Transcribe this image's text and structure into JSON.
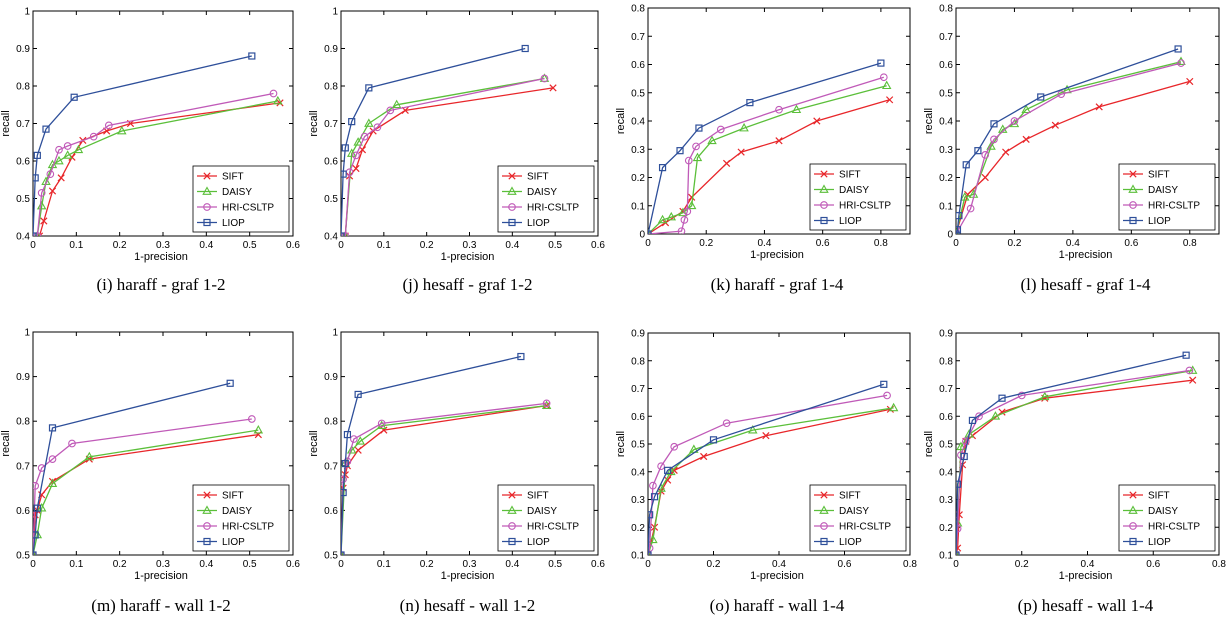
{
  "colors": {
    "SIFT": "#e8262a",
    "DAISY": "#5bbf3a",
    "HRI-CSLTP": "#c05ab8",
    "LIOP": "#2e4f9a"
  },
  "chart_data": [
    {
      "type": "line",
      "caption": "(i)  haraff - graf 1-2",
      "xlabel": "1-precision",
      "ylabel": "recall",
      "xlim": [
        0,
        0.6
      ],
      "ylim": [
        0.4,
        1
      ],
      "xticks": [
        "0",
        "0.1",
        "0.2",
        "0.3",
        "0.4",
        "0.5",
        "0.6"
      ],
      "yticks": [
        "0.4",
        "0.5",
        "0.6",
        "0.7",
        "0.8",
        "0.9",
        "1"
      ],
      "legend": "bottom-right",
      "series": [
        {
          "name": "SIFT",
          "marker": "x",
          "x": [
            0.015,
            0.025,
            0.045,
            0.065,
            0.09,
            0.115,
            0.17,
            0.225,
            0.57
          ],
          "y": [
            0.4,
            0.44,
            0.52,
            0.555,
            0.61,
            0.655,
            0.68,
            0.7,
            0.755
          ]
        },
        {
          "name": "DAISY",
          "marker": "^",
          "x": [
            0.01,
            0.02,
            0.03,
            0.045,
            0.06,
            0.08,
            0.105,
            0.205,
            0.565
          ],
          "y": [
            0.4,
            0.48,
            0.545,
            0.59,
            0.6,
            0.615,
            0.63,
            0.68,
            0.76
          ]
        },
        {
          "name": "HRI-CSLTP",
          "marker": "o",
          "x": [
            0.01,
            0.02,
            0.04,
            0.06,
            0.08,
            0.14,
            0.175,
            0.555
          ],
          "y": [
            0.4,
            0.515,
            0.565,
            0.63,
            0.64,
            0.665,
            0.695,
            0.78
          ]
        },
        {
          "name": "LIOP",
          "marker": "s",
          "x": [
            0.0,
            0.005,
            0.01,
            0.03,
            0.095,
            0.505
          ],
          "y": [
            0.4,
            0.555,
            0.615,
            0.685,
            0.77,
            0.88
          ]
        }
      ]
    },
    {
      "type": "line",
      "caption": "(j)  hesaff - graf 1-2",
      "xlabel": "1-precision",
      "ylabel": "recall",
      "xlim": [
        0,
        0.6
      ],
      "ylim": [
        0.4,
        1
      ],
      "xticks": [
        "0",
        "0.1",
        "0.2",
        "0.3",
        "0.4",
        "0.5",
        "0.6"
      ],
      "yticks": [
        "0.4",
        "0.5",
        "0.6",
        "0.7",
        "0.8",
        "0.9",
        "1"
      ],
      "legend": "bottom-right",
      "series": [
        {
          "name": "SIFT",
          "marker": "x",
          "x": [
            0.01,
            0.02,
            0.035,
            0.05,
            0.075,
            0.15,
            0.495
          ],
          "y": [
            0.4,
            0.56,
            0.58,
            0.63,
            0.68,
            0.735,
            0.795
          ]
        },
        {
          "name": "DAISY",
          "marker": "^",
          "x": [
            0.01,
            0.025,
            0.04,
            0.065,
            0.13,
            0.475
          ],
          "y": [
            0.4,
            0.62,
            0.65,
            0.7,
            0.75,
            0.82
          ]
        },
        {
          "name": "HRI-CSLTP",
          "marker": "o",
          "x": [
            0.01,
            0.02,
            0.035,
            0.055,
            0.085,
            0.115,
            0.475
          ],
          "y": [
            0.4,
            0.57,
            0.615,
            0.665,
            0.69,
            0.735,
            0.82
          ]
        },
        {
          "name": "LIOP",
          "marker": "s",
          "x": [
            0.0,
            0.005,
            0.01,
            0.025,
            0.065,
            0.43
          ],
          "y": [
            0.4,
            0.565,
            0.635,
            0.705,
            0.795,
            0.9
          ]
        }
      ]
    },
    {
      "type": "line",
      "caption": "(k)  haraff - graf 1-4",
      "xlabel": "1-precision",
      "ylabel": "recall",
      "xlim": [
        0,
        0.9
      ],
      "ylim": [
        0,
        0.8
      ],
      "xticks": [
        "0",
        "0.2",
        "0.4",
        "0.6",
        "0.8"
      ],
      "yticks": [
        "0",
        "0.1",
        "0.2",
        "0.3",
        "0.4",
        "0.5",
        "0.6",
        "0.7",
        "0.8"
      ],
      "legend": "bottom-right",
      "series": [
        {
          "name": "SIFT",
          "marker": "x",
          "x": [
            0.0,
            0.06,
            0.12,
            0.15,
            0.27,
            0.32,
            0.45,
            0.58,
            0.83
          ],
          "y": [
            0.0,
            0.04,
            0.08,
            0.13,
            0.25,
            0.29,
            0.33,
            0.4,
            0.475
          ]
        },
        {
          "name": "DAISY",
          "marker": "^",
          "x": [
            0.0,
            0.05,
            0.08,
            0.12,
            0.15,
            0.17,
            0.22,
            0.33,
            0.51,
            0.82
          ],
          "y": [
            0.0,
            0.05,
            0.06,
            0.075,
            0.1,
            0.27,
            0.33,
            0.375,
            0.44,
            0.525
          ]
        },
        {
          "name": "HRI-CSLTP",
          "marker": "o",
          "x": [
            0.0,
            0.115,
            0.125,
            0.135,
            0.14,
            0.165,
            0.25,
            0.45,
            0.81
          ],
          "y": [
            0.0,
            0.01,
            0.05,
            0.08,
            0.26,
            0.31,
            0.37,
            0.44,
            0.555
          ]
        },
        {
          "name": "LIOP",
          "marker": "s",
          "x": [
            0.0,
            0.05,
            0.11,
            0.175,
            0.35,
            0.8
          ],
          "y": [
            0.0,
            0.235,
            0.295,
            0.375,
            0.465,
            0.605
          ]
        }
      ]
    },
    {
      "type": "line",
      "caption": "(l)  hesaff - graf 1-4",
      "xlabel": "1-precision",
      "ylabel": "recall",
      "xlim": [
        0,
        0.9
      ],
      "ylim": [
        0,
        0.8
      ],
      "xticks": [
        "0",
        "0.2",
        "0.4",
        "0.6",
        "0.8"
      ],
      "yticks": [
        "0",
        "0.1",
        "0.2",
        "0.3",
        "0.4",
        "0.5",
        "0.6",
        "0.7",
        "0.8"
      ],
      "legend": "bottom-right",
      "series": [
        {
          "name": "SIFT",
          "marker": "x",
          "x": [
            0.0,
            0.04,
            0.1,
            0.17,
            0.24,
            0.34,
            0.49,
            0.8
          ],
          "y": [
            0.0,
            0.14,
            0.2,
            0.29,
            0.335,
            0.385,
            0.45,
            0.54
          ]
        },
        {
          "name": "DAISY",
          "marker": "^",
          "x": [
            0.0,
            0.03,
            0.06,
            0.12,
            0.16,
            0.2,
            0.24,
            0.38,
            0.77
          ],
          "y": [
            0.0,
            0.13,
            0.14,
            0.31,
            0.37,
            0.39,
            0.44,
            0.51,
            0.61
          ]
        },
        {
          "name": "HRI-CSLTP",
          "marker": "o",
          "x": [
            0.0,
            0.05,
            0.1,
            0.13,
            0.2,
            0.36,
            0.77
          ],
          "y": [
            0.0,
            0.09,
            0.28,
            0.335,
            0.4,
            0.495,
            0.605
          ]
        },
        {
          "name": "LIOP",
          "marker": "s",
          "x": [
            0.0,
            0.005,
            0.01,
            0.035,
            0.075,
            0.13,
            0.29,
            0.76
          ],
          "y": [
            0.0,
            0.015,
            0.065,
            0.245,
            0.295,
            0.39,
            0.485,
            0.655
          ]
        }
      ]
    },
    {
      "type": "line",
      "caption": "(m)  haraff - wall 1-2",
      "xlabel": "1-precision",
      "ylabel": "recall",
      "xlim": [
        0,
        0.6
      ],
      "ylim": [
        0.5,
        1
      ],
      "xticks": [
        "0",
        "0.1",
        "0.2",
        "0.3",
        "0.4",
        "0.5",
        "0.6"
      ],
      "yticks": [
        "0.5",
        "0.6",
        "0.7",
        "0.8",
        "0.9",
        "1"
      ],
      "legend": "bottom-right",
      "series": [
        {
          "name": "SIFT",
          "marker": "x",
          "x": [
            0.0,
            0.005,
            0.01,
            0.02,
            0.045,
            0.13,
            0.52
          ],
          "y": [
            0.5,
            0.59,
            0.6,
            0.635,
            0.665,
            0.715,
            0.77
          ]
        },
        {
          "name": "DAISY",
          "marker": "^",
          "x": [
            0.0,
            0.01,
            0.02,
            0.045,
            0.13,
            0.52
          ],
          "y": [
            0.5,
            0.545,
            0.605,
            0.66,
            0.72,
            0.78
          ]
        },
        {
          "name": "HRI-CSLTP",
          "marker": "o",
          "x": [
            0.0,
            0.005,
            0.02,
            0.045,
            0.09,
            0.505
          ],
          "y": [
            0.5,
            0.655,
            0.695,
            0.715,
            0.75,
            0.805
          ]
        },
        {
          "name": "LIOP",
          "marker": "s",
          "x": [
            0.0,
            0.005,
            0.01,
            0.045,
            0.455
          ],
          "y": [
            0.5,
            0.545,
            0.605,
            0.785,
            0.885
          ]
        }
      ]
    },
    {
      "type": "line",
      "caption": "(n)  hesaff - wall 1-2",
      "xlabel": "1-precision",
      "ylabel": "recall",
      "xlim": [
        0,
        0.6
      ],
      "ylim": [
        0.5,
        1
      ],
      "xticks": [
        "0",
        "0.1",
        "0.2",
        "0.3",
        "0.4",
        "0.5",
        "0.6"
      ],
      "yticks": [
        "0.5",
        "0.6",
        "0.7",
        "0.8",
        "0.9",
        "1"
      ],
      "legend": "bottom-right",
      "series": [
        {
          "name": "SIFT",
          "marker": "x",
          "x": [
            0.0,
            0.005,
            0.01,
            0.015,
            0.04,
            0.1,
            0.48
          ],
          "y": [
            0.5,
            0.65,
            0.68,
            0.7,
            0.735,
            0.78,
            0.835
          ]
        },
        {
          "name": "DAISY",
          "marker": "^",
          "x": [
            0.0,
            0.01,
            0.025,
            0.045,
            0.095,
            0.48
          ],
          "y": [
            0.5,
            0.705,
            0.735,
            0.755,
            0.79,
            0.835
          ]
        },
        {
          "name": "HRI-CSLTP",
          "marker": "o",
          "x": [
            0.0,
            0.005,
            0.015,
            0.03,
            0.095,
            0.48
          ],
          "y": [
            0.5,
            0.67,
            0.71,
            0.76,
            0.795,
            0.84
          ]
        },
        {
          "name": "LIOP",
          "marker": "s",
          "x": [
            0.0,
            0.005,
            0.01,
            0.015,
            0.04,
            0.42
          ],
          "y": [
            0.5,
            0.64,
            0.705,
            0.77,
            0.86,
            0.945
          ]
        }
      ]
    },
    {
      "type": "line",
      "caption": "(o)  haraff - wall 1-4",
      "xlabel": "1-precision",
      "ylabel": "recall",
      "xlim": [
        0,
        0.8
      ],
      "ylim": [
        0.1,
        0.9
      ],
      "xticks": [
        "0",
        "0.2",
        "0.4",
        "0.6",
        "0.8"
      ],
      "yticks": [
        "0.1",
        "0.2",
        "0.3",
        "0.4",
        "0.5",
        "0.6",
        "0.7",
        "0.8",
        "0.9"
      ],
      "legend": "bottom-right",
      "series": [
        {
          "name": "SIFT",
          "marker": "x",
          "x": [
            0.0,
            0.02,
            0.04,
            0.06,
            0.08,
            0.17,
            0.36,
            0.74
          ],
          "y": [
            0.1,
            0.2,
            0.33,
            0.37,
            0.405,
            0.455,
            0.53,
            0.625
          ]
        },
        {
          "name": "DAISY",
          "marker": "^",
          "x": [
            0.0,
            0.015,
            0.04,
            0.07,
            0.14,
            0.32,
            0.75
          ],
          "y": [
            0.1,
            0.155,
            0.34,
            0.4,
            0.48,
            0.55,
            0.63
          ]
        },
        {
          "name": "HRI-CSLTP",
          "marker": "o",
          "x": [
            0.0,
            0.005,
            0.015,
            0.04,
            0.08,
            0.24,
            0.73
          ],
          "y": [
            0.1,
            0.125,
            0.35,
            0.42,
            0.49,
            0.575,
            0.675
          ]
        },
        {
          "name": "LIOP",
          "marker": "s",
          "x": [
            0.0,
            0.005,
            0.02,
            0.06,
            0.2,
            0.72
          ],
          "y": [
            0.1,
            0.245,
            0.31,
            0.405,
            0.515,
            0.715
          ]
        }
      ]
    },
    {
      "type": "line",
      "caption": "(p)  hesaff - wall 1-4",
      "xlabel": "1-precision",
      "ylabel": "recall",
      "xlim": [
        0,
        0.8
      ],
      "ylim": [
        0.1,
        0.9
      ],
      "xticks": [
        "0",
        "0.2",
        "0.4",
        "0.6",
        "0.8"
      ],
      "yticks": [
        "0.1",
        "0.2",
        "0.3",
        "0.4",
        "0.5",
        "0.6",
        "0.7",
        "0.8",
        "0.9"
      ],
      "legend": "bottom-right",
      "series": [
        {
          "name": "SIFT",
          "marker": "x",
          "x": [
            0.0,
            0.005,
            0.01,
            0.02,
            0.03,
            0.05,
            0.14,
            0.27,
            0.72
          ],
          "y": [
            0.1,
            0.125,
            0.245,
            0.425,
            0.51,
            0.53,
            0.615,
            0.665,
            0.73
          ]
        },
        {
          "name": "DAISY",
          "marker": "^",
          "x": [
            0.0,
            0.005,
            0.015,
            0.04,
            0.12,
            0.27,
            0.72
          ],
          "y": [
            0.1,
            0.215,
            0.49,
            0.535,
            0.6,
            0.67,
            0.765
          ]
        },
        {
          "name": "HRI-CSLTP",
          "marker": "o",
          "x": [
            0.0,
            0.005,
            0.015,
            0.03,
            0.07,
            0.2,
            0.71
          ],
          "y": [
            0.1,
            0.195,
            0.46,
            0.51,
            0.6,
            0.675,
            0.765
          ]
        },
        {
          "name": "LIOP",
          "marker": "s",
          "x": [
            0.0,
            0.005,
            0.025,
            0.05,
            0.14,
            0.7
          ],
          "y": [
            0.1,
            0.355,
            0.455,
            0.585,
            0.665,
            0.82
          ]
        }
      ]
    }
  ]
}
